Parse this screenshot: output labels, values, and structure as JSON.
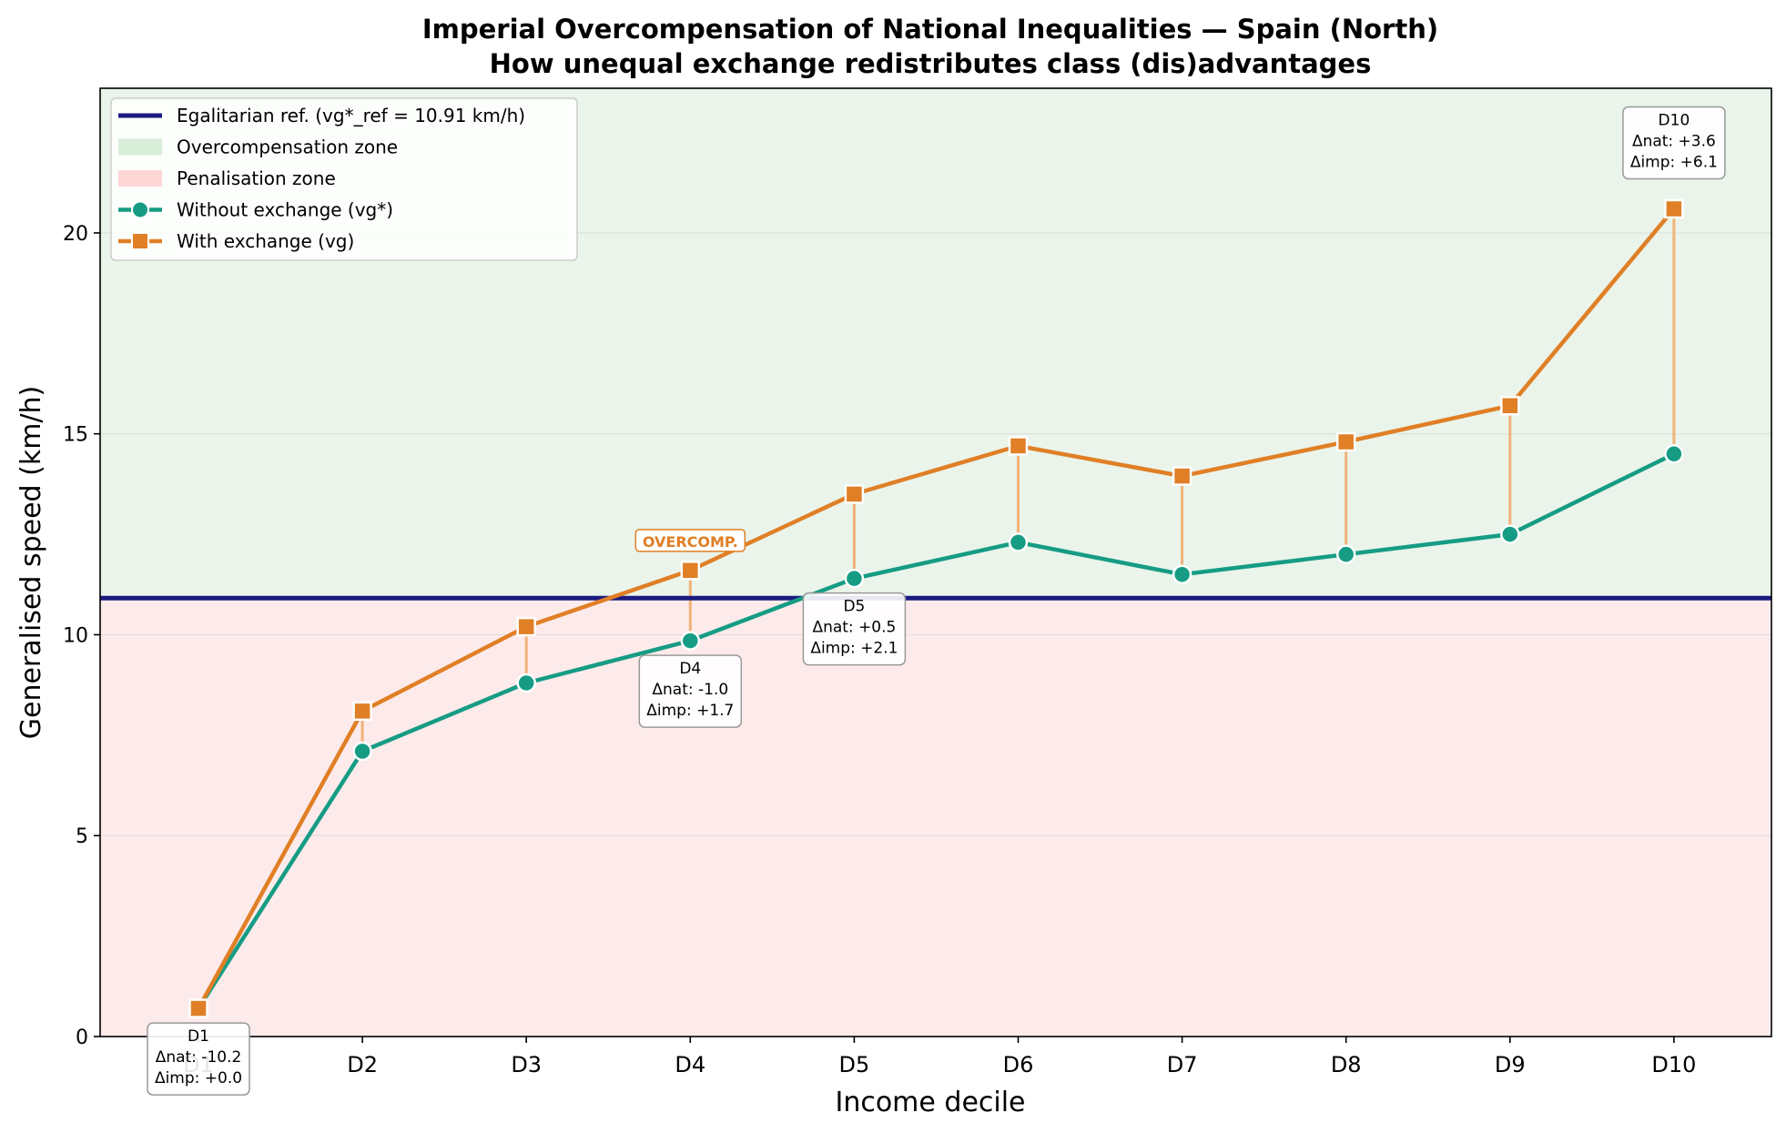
{
  "chart_data": {
    "type": "line",
    "title": "Imperial Overcompensation of National Inequalities — Spain (North)",
    "subtitle": "How unequal exchange redistributes class (dis)advantages",
    "xlabel": "Income decile",
    "ylabel": "Generalised speed (km/h)",
    "categories": [
      "D1",
      "D2",
      "D3",
      "D4",
      "D5",
      "D6",
      "D7",
      "D8",
      "D9",
      "D10"
    ],
    "ylim": [
      0,
      23.6
    ],
    "yticks": [
      0,
      5,
      10,
      15,
      20
    ],
    "grid": true,
    "legend_position": "top-left",
    "reference_line": {
      "label": "Egalitarian ref. (vg*_ref = 10.91 km/h)",
      "value": 10.91,
      "color": "#1a1a80"
    },
    "zones": [
      {
        "label": "Overcompensation zone",
        "color": "#d9eed9",
        "fill": "#eaf4ea"
      },
      {
        "label": "Penalisation zone",
        "color": "#ffd6d6",
        "fill": "#fdebeb"
      }
    ],
    "series": [
      {
        "name": "Without exchange (vg*)",
        "color": "#169c84",
        "marker": "circle",
        "values": [
          0.7,
          7.1,
          8.8,
          9.85,
          11.4,
          12.3,
          11.5,
          12.0,
          12.5,
          14.5
        ]
      },
      {
        "name": "With exchange (vg)",
        "color": "#e07f26",
        "marker": "square",
        "values": [
          0.7,
          8.1,
          10.2,
          11.6,
          13.5,
          14.7,
          13.95,
          14.8,
          15.7,
          20.6
        ]
      }
    ],
    "annotations": [
      {
        "decile": "D1",
        "lines": [
          "D1",
          "Δnat: -10.2",
          "Δimp: +0.0"
        ],
        "placement": "below"
      },
      {
        "decile": "D4",
        "lines": [
          "D4",
          "Δnat: -1.0",
          "Δimp: +1.7"
        ],
        "placement": "below"
      },
      {
        "decile": "D5",
        "lines": [
          "D5",
          "Δnat: +0.5",
          "Δimp: +2.1"
        ],
        "placement": "below"
      },
      {
        "decile": "D10",
        "lines": [
          "D10",
          "Δnat: +3.6",
          "Δimp: +6.1"
        ],
        "placement": "above"
      }
    ],
    "tag": {
      "decile": "D4",
      "text": "OVERCOMP.",
      "color": "#e07f26"
    }
  }
}
